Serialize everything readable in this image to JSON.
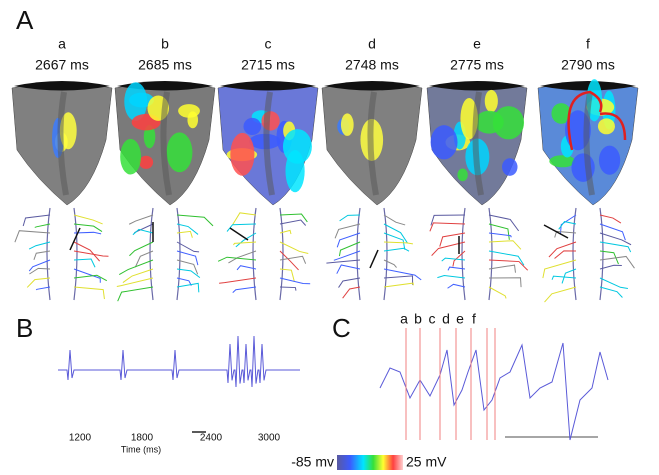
{
  "panel_a": {
    "label": "A",
    "frames": [
      {
        "letter": "a",
        "time": "2667 ms"
      },
      {
        "letter": "b",
        "time": "2685 ms"
      },
      {
        "letter": "c",
        "time": "2715 ms"
      },
      {
        "letter": "d",
        "time": "2748 ms"
      },
      {
        "letter": "e",
        "time": "2775 ms"
      },
      {
        "letter": "f",
        "time": "2790 ms"
      }
    ]
  },
  "panel_b": {
    "label": "B",
    "ticks": [
      "1200",
      "1800",
      "2400",
      "3000"
    ],
    "axis_label": "Time (ms)"
  },
  "panel_c": {
    "label": "C",
    "markers": [
      "a",
      "b",
      "c",
      "d",
      "e",
      "f"
    ]
  },
  "colorbar": {
    "min_label": "-85 mv",
    "max_label": "25 mV"
  }
}
